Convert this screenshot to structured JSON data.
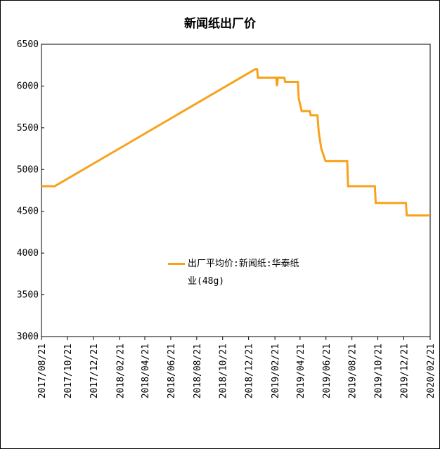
{
  "chart_data": {
    "type": "line",
    "title": "新闻纸出厂价",
    "series": [
      {
        "name": "出厂平均价:新闻纸:华泰纸业(48g)",
        "color": "#f7a21b",
        "x": [
          "2017/08/21",
          "2017/09/21",
          "2019/01/05",
          "2019/01/10",
          "2019/01/12",
          "2019/02/24",
          "2019/02/26",
          "2019/02/28",
          "2019/03/15",
          "2019/03/17",
          "2019/04/16",
          "2019/04/18",
          "2019/04/25",
          "2019/05/14",
          "2019/05/16",
          "2019/06/01",
          "2019/06/04",
          "2019/06/10",
          "2019/06/20",
          "2019/08/10",
          "2019/08/12",
          "2019/10/14",
          "2019/10/16",
          "2019/12/26",
          "2019/12/28",
          "2020/02/21"
        ],
        "values": [
          4800,
          4800,
          6200,
          6200,
          6100,
          6100,
          6000,
          6100,
          6100,
          6050,
          6050,
          5850,
          5700,
          5700,
          5650,
          5650,
          5450,
          5250,
          5100,
          5100,
          4800,
          4800,
          4600,
          4600,
          4450,
          4450
        ]
      }
    ],
    "xlim": [
      "2017/08/21",
      "2020/02/21"
    ],
    "xticks": [
      "2017/08/21",
      "2017/10/21",
      "2017/12/21",
      "2018/02/21",
      "2018/04/21",
      "2018/06/21",
      "2018/08/21",
      "2018/10/21",
      "2018/12/21",
      "2019/02/21",
      "2019/04/21",
      "2019/06/21",
      "2019/08/21",
      "2019/10/21",
      "2019/12/21",
      "2020/02/21"
    ],
    "ylim": [
      3000,
      6500
    ],
    "yticks": [
      3000,
      3500,
      4000,
      4500,
      5000,
      5500,
      6000,
      6500
    ],
    "grid": false
  }
}
